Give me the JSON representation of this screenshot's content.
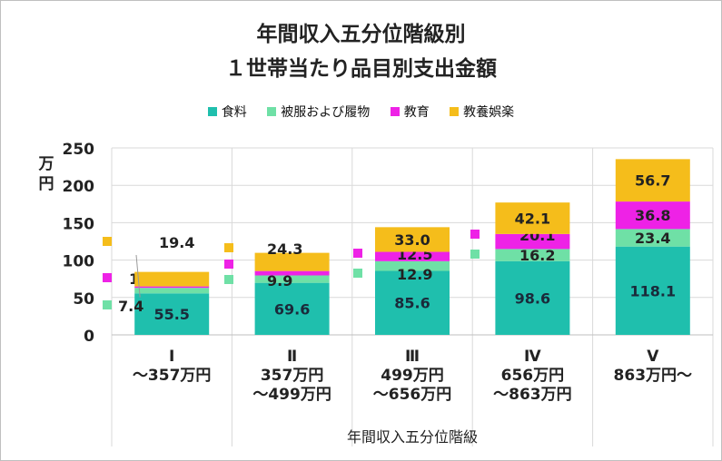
{
  "chart_data": {
    "type": "bar",
    "stacked": true,
    "title": "年間収入五分位階級別",
    "subtitle": "１世帯当たり品目別支出金額",
    "ylabel": "万円",
    "xlabel": "年間収入五分位階級",
    "ylim": [
      0,
      250
    ],
    "yticks": [
      0,
      50,
      100,
      150,
      200,
      250
    ],
    "grid": true,
    "legend_position": "top",
    "categories": [
      [
        "Ⅰ",
        "～357万円"
      ],
      [
        "Ⅱ",
        "357万円",
        "～499万円"
      ],
      [
        "Ⅲ",
        "499万円",
        "～656万円"
      ],
      [
        "Ⅳ",
        "656万円",
        "～863万円"
      ],
      [
        "Ⅴ",
        "863万円～"
      ]
    ],
    "series": [
      {
        "name": "食料",
        "color": "#1fbfad",
        "values": [
          55.5,
          69.6,
          85.6,
          98.6,
          118.1
        ]
      },
      {
        "name": "被服および履物",
        "color": "#6fe0a6",
        "values": [
          7.4,
          9.9,
          12.9,
          16.2,
          23.4
        ]
      },
      {
        "name": "教育",
        "color": "#ee22e6",
        "values": [
          1.9,
          5.9,
          12.5,
          20.1,
          36.8
        ]
      },
      {
        "name": "教養娯楽",
        "color": "#f5bd1b",
        "values": [
          19.4,
          24.3,
          33.0,
          42.1,
          56.7
        ]
      }
    ]
  }
}
